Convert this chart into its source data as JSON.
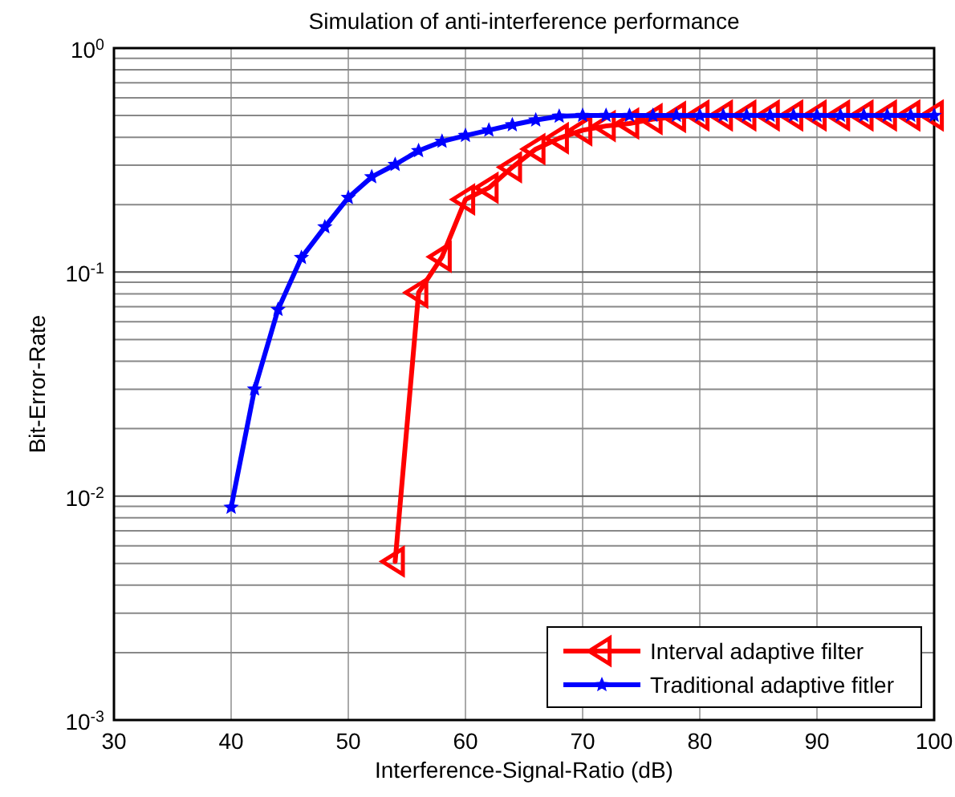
{
  "chart_data": {
    "type": "line",
    "title": "Simulation of anti-interference performance",
    "xlabel": "Interference-Signal-Ratio (dB)",
    "ylabel": "Bit-Error-Rate",
    "log": "y",
    "grid": true,
    "legend": "bottom right",
    "line_style": "solid",
    "xlim": [
      30,
      100
    ],
    "xticks": [
      30,
      40,
      50,
      60,
      70,
      80,
      90,
      100
    ],
    "ylim": [
      0.001,
      1
    ],
    "yticks": [
      {
        "value": 0.001,
        "label": "10$^{-3}$"
      },
      {
        "value": 0.01,
        "label": "10$^{-2}$"
      },
      {
        "value": 0.1,
        "label": "10$^{-1}$"
      },
      {
        "value": 1,
        "label": "10$^{0}$"
      }
    ],
    "series": [
      {
        "name": "Interval adaptive filter",
        "color": "#ff0000",
        "marker": "triangle",
        "x": [
          54,
          56,
          58,
          60,
          62,
          64,
          66,
          68,
          70,
          72,
          74,
          76,
          78,
          80,
          82,
          84,
          86,
          88,
          90,
          92,
          94,
          96,
          98,
          100
        ],
        "values": [
          0.0051,
          0.081,
          0.117,
          0.211,
          0.238,
          0.294,
          0.354,
          0.396,
          0.43,
          0.449,
          0.461,
          0.482,
          0.493,
          0.5,
          0.5,
          0.5,
          0.5,
          0.5,
          0.5,
          0.5,
          0.5,
          0.5,
          0.5,
          0.5
        ]
      },
      {
        "name": "Traditional adaptive fitler",
        "color": "#0000ff",
        "marker": "star",
        "x": [
          40,
          42,
          44,
          46,
          48,
          50,
          52,
          54,
          56,
          58,
          60,
          62,
          64,
          66,
          68,
          70,
          72,
          74,
          76,
          78,
          80,
          82,
          84,
          86,
          88,
          90,
          92,
          94,
          96,
          98,
          100
        ],
        "values": [
          0.0089,
          0.03,
          0.068,
          0.116,
          0.159,
          0.215,
          0.266,
          0.302,
          0.348,
          0.383,
          0.407,
          0.43,
          0.454,
          0.477,
          0.496,
          0.5,
          0.5,
          0.5,
          0.5,
          0.5,
          0.5,
          0.5,
          0.5,
          0.5,
          0.5,
          0.5,
          0.5,
          0.5,
          0.5,
          0.5,
          0.5
        ]
      }
    ]
  }
}
